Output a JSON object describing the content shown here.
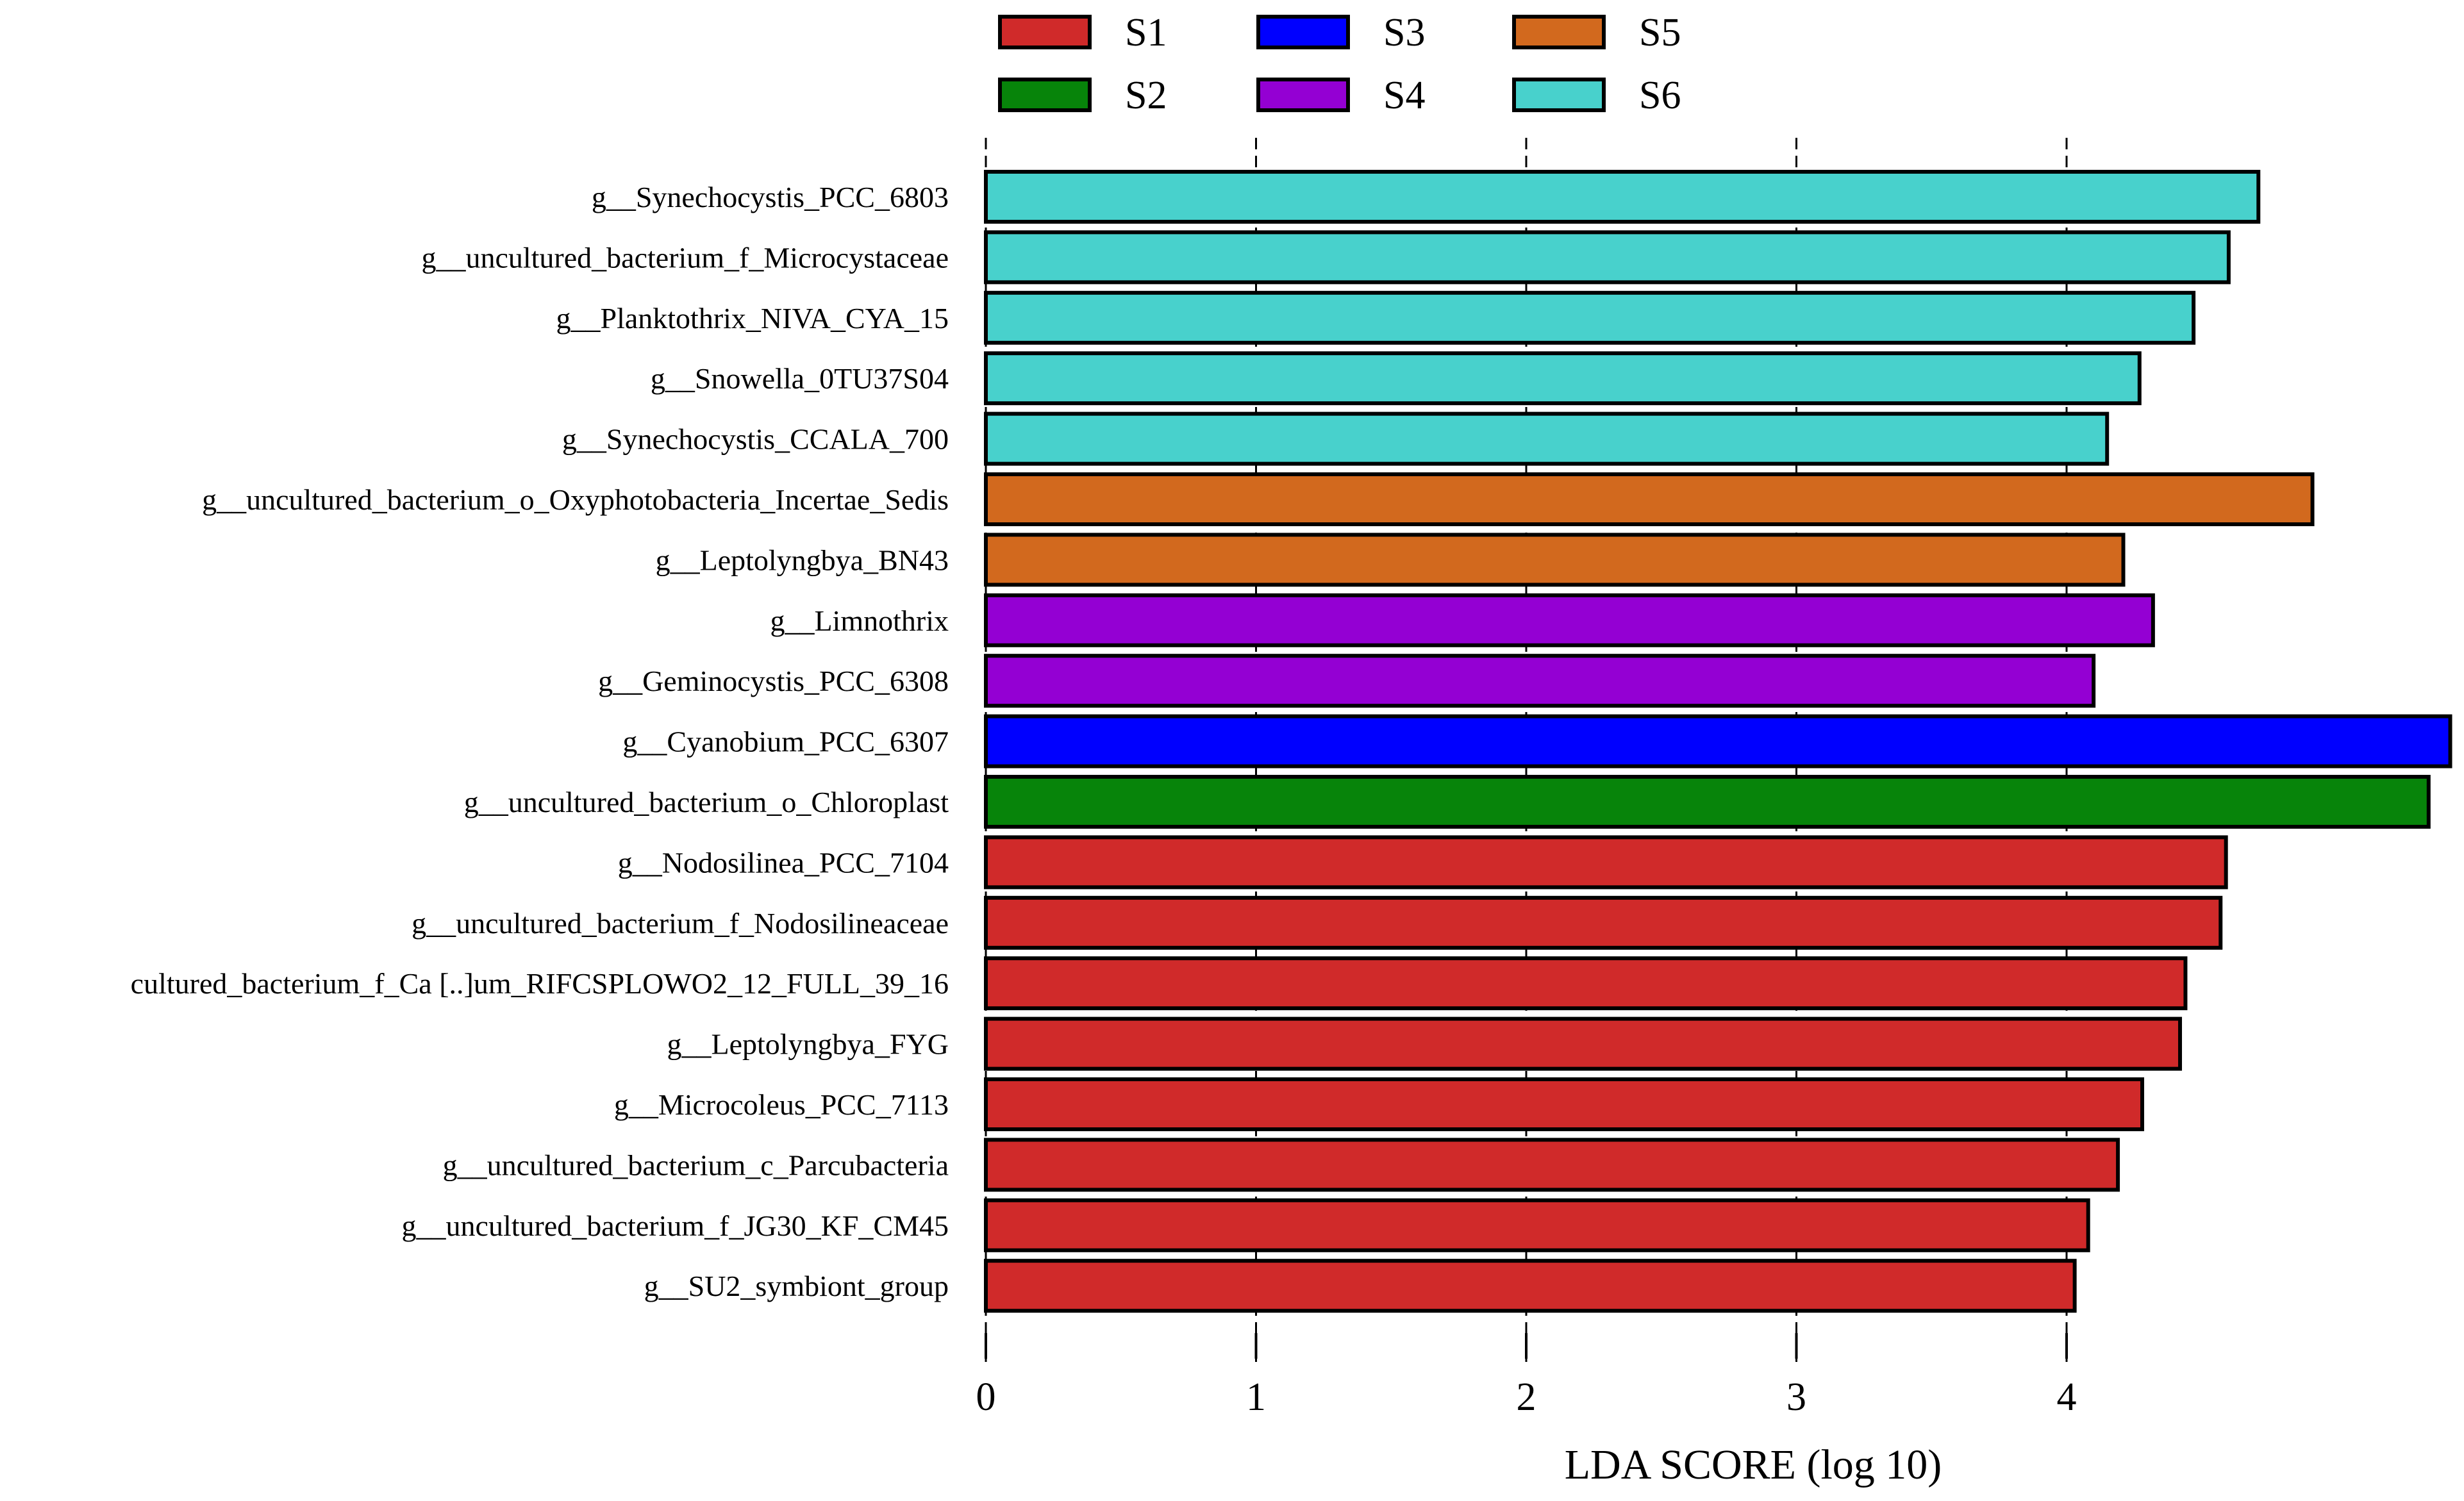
{
  "chart_data": {
    "type": "bar",
    "orientation": "horizontal",
    "xlabel": "LDA SCORE (log 10)",
    "ylabel": "",
    "title": "",
    "xlim": [
      0,
      5.42
    ],
    "xticks": [
      0,
      1,
      2,
      3,
      4
    ],
    "grid": true,
    "legend_position": "top",
    "legend": [
      {
        "name": "S1",
        "color": "#d02a2a"
      },
      {
        "name": "S3",
        "color": "#0000ff"
      },
      {
        "name": "S5",
        "color": "#d2691e"
      },
      {
        "name": "S2",
        "color": "#07840a"
      },
      {
        "name": "S4",
        "color": "#9400d3"
      },
      {
        "name": "S6",
        "color": "#48d1cc"
      }
    ],
    "categories": [
      "g__Synechocystis_PCC_6803",
      "g__uncultured_bacterium_f_Microcystaceae",
      "g__Planktothrix_NIVA_CYA_15",
      "g__Snowella_0TU37S04",
      "g__Synechocystis_CCALA_700",
      "g__uncultured_bacterium_o_Oxyphotobacteria_Incertae_Sedis",
      "g__Leptolyngbya_BN43",
      "g__Limnothrix",
      "g__Geminocystis_PCC_6308",
      "g__Cyanobium_PCC_6307",
      "g__uncultured_bacterium_o_Chloroplast",
      "g__Nodosilinea_PCC_7104",
      "g__uncultured_bacterium_f_Nodosilineaceae",
      "cultured_bacterium_f_Ca [..]um_RIFCSPLOWO2_12_FULL_39_16",
      "g__Leptolyngbya_FYG",
      "g__Microcoleus_PCC_7113",
      "g__uncultured_bacterium_c_Parcubacteria",
      "g__uncultured_bacterium_f_JG30_KF_CM45",
      "g__SU2_symbiont_group"
    ],
    "values": [
      4.71,
      4.6,
      4.47,
      4.27,
      4.15,
      4.91,
      4.21,
      4.32,
      4.1,
      5.42,
      5.34,
      4.59,
      4.57,
      4.44,
      4.42,
      4.28,
      4.19,
      4.08,
      4.03
    ],
    "groups": [
      "S6",
      "S6",
      "S6",
      "S6",
      "S6",
      "S5",
      "S5",
      "S4",
      "S4",
      "S3",
      "S2",
      "S1",
      "S1",
      "S1",
      "S1",
      "S1",
      "S1",
      "S1",
      "S1"
    ]
  }
}
